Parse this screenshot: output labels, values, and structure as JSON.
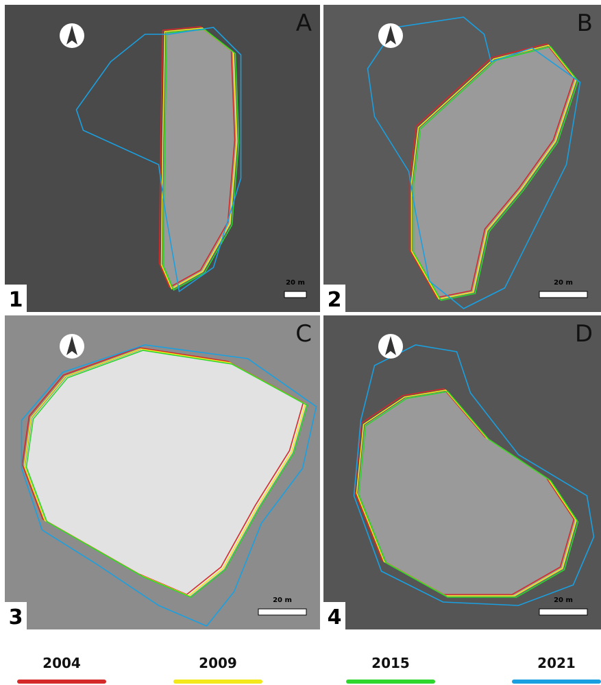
{
  "panels": [
    {
      "letter": "A",
      "number": "1",
      "scale": "20 m"
    },
    {
      "letter": "B",
      "number": "2",
      "scale": "20 m"
    },
    {
      "letter": "C",
      "number": "3",
      "scale": "20 m"
    },
    {
      "letter": "D",
      "number": "4",
      "scale": "20 m"
    }
  ],
  "legend": [
    {
      "name": "2004",
      "color": "#d42a2a"
    },
    {
      "name": "2009",
      "color": "#f2e81c"
    },
    {
      "name": "2015",
      "color": "#2ed62e"
    },
    {
      "name": "2021",
      "color": "#1aa0e0"
    }
  ]
}
